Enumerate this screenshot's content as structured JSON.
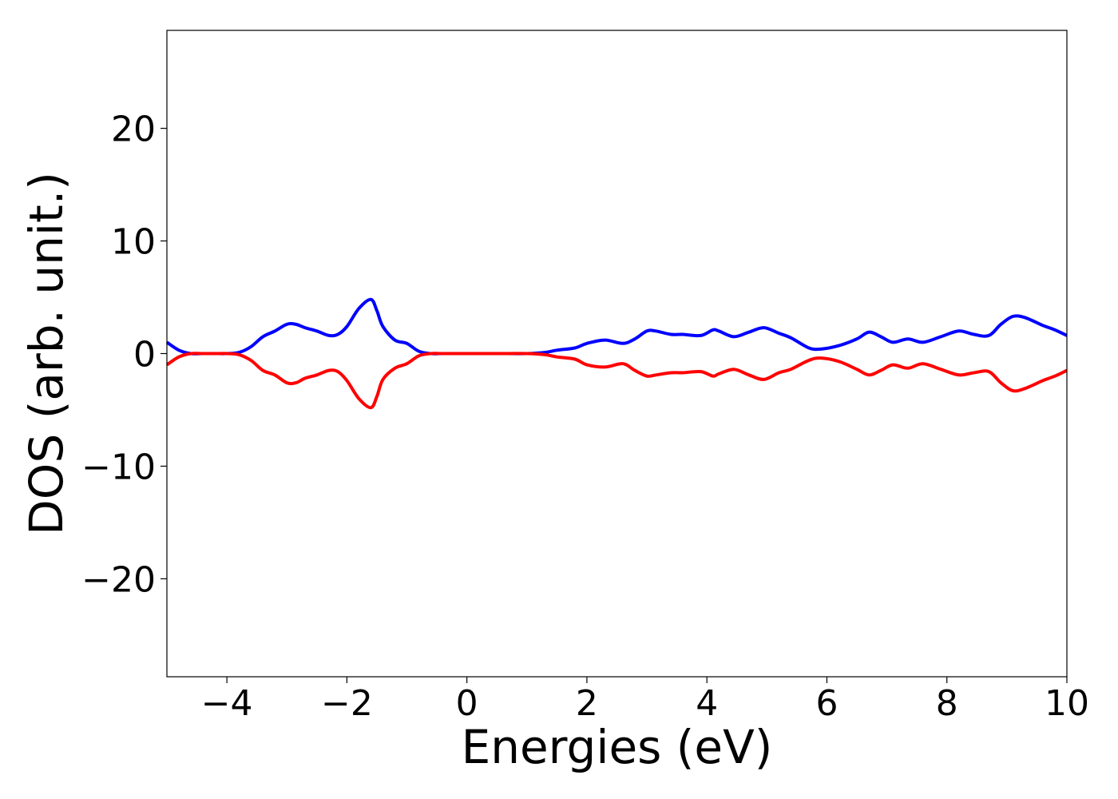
{
  "chart_data": {
    "type": "line",
    "title": "",
    "xlabel": "Energies (eV)",
    "ylabel": "DOS (arb. unit.)",
    "xlim": [
      -5,
      10
    ],
    "ylim": [
      -28.7,
      28.7
    ],
    "xticks": [
      -4,
      -2,
      0,
      2,
      4,
      6,
      8,
      10
    ],
    "xtick_labels": [
      "−4",
      "−2",
      "0",
      "2",
      "4",
      "6",
      "8",
      "10"
    ],
    "yticks": [
      -20,
      -10,
      0,
      10,
      20
    ],
    "ytick_labels": [
      "−20",
      "−10",
      "0",
      "10",
      "20"
    ],
    "grid": false,
    "legend": "none",
    "series": [
      {
        "color": "#0000ff",
        "x": [
          -5.0,
          -4.8,
          -4.6,
          -4.4,
          -4.2,
          -4.0,
          -3.8,
          -3.6,
          -3.4,
          -3.2,
          -3.0,
          -2.85,
          -2.7,
          -2.5,
          -2.3,
          -2.15,
          -2.0,
          -1.8,
          -1.6,
          -1.5,
          -1.4,
          -1.2,
          -1.0,
          -0.8,
          -0.6,
          -0.4,
          0.0,
          0.5,
          1.0,
          1.3,
          1.5,
          1.8,
          2.0,
          2.3,
          2.6,
          2.8,
          3.0,
          3.15,
          3.4,
          3.6,
          3.9,
          4.1,
          4.2,
          4.45,
          4.7,
          4.95,
          5.2,
          5.4,
          5.7,
          5.9,
          6.2,
          6.5,
          6.7,
          6.9,
          7.1,
          7.35,
          7.6,
          7.9,
          8.2,
          8.45,
          8.7,
          8.9,
          9.1,
          9.3,
          9.6,
          9.8,
          10.0
        ],
        "values": [
          1.0,
          0.3,
          0.0,
          0.0,
          0.0,
          0.0,
          0.1,
          0.6,
          1.5,
          2.0,
          2.6,
          2.6,
          2.3,
          2.0,
          1.6,
          1.7,
          2.4,
          4.0,
          4.8,
          3.8,
          2.4,
          1.2,
          0.9,
          0.2,
          0.0,
          0.0,
          0.0,
          0.0,
          0.0,
          0.1,
          0.3,
          0.5,
          0.9,
          1.2,
          0.9,
          1.3,
          2.0,
          2.0,
          1.7,
          1.7,
          1.6,
          2.1,
          2.0,
          1.5,
          1.9,
          2.3,
          1.8,
          1.4,
          0.5,
          0.4,
          0.7,
          1.3,
          1.9,
          1.5,
          1.0,
          1.3,
          1.0,
          1.5,
          2.0,
          1.7,
          1.6,
          2.6,
          3.3,
          3.2,
          2.5,
          2.1,
          1.6
        ]
      },
      {
        "color": "#ff0000",
        "x": [
          -5.0,
          -4.8,
          -4.6,
          -4.4,
          -4.2,
          -4.0,
          -3.8,
          -3.6,
          -3.4,
          -3.2,
          -3.0,
          -2.85,
          -2.7,
          -2.5,
          -2.3,
          -2.15,
          -2.0,
          -1.8,
          -1.6,
          -1.5,
          -1.4,
          -1.2,
          -1.0,
          -0.8,
          -0.6,
          -0.4,
          0.0,
          0.5,
          1.0,
          1.3,
          1.5,
          1.8,
          2.0,
          2.3,
          2.6,
          2.8,
          3.0,
          3.15,
          3.4,
          3.6,
          3.9,
          4.1,
          4.2,
          4.45,
          4.7,
          4.95,
          5.2,
          5.4,
          5.7,
          5.9,
          6.2,
          6.5,
          6.7,
          6.9,
          7.1,
          7.35,
          7.6,
          7.9,
          8.2,
          8.45,
          8.7,
          8.9,
          9.1,
          9.3,
          9.6,
          9.8,
          10.0
        ],
        "values": [
          -1.0,
          -0.3,
          0.0,
          0.0,
          0.0,
          0.0,
          -0.1,
          -0.6,
          -1.5,
          -1.9,
          -2.6,
          -2.6,
          -2.2,
          -1.9,
          -1.5,
          -1.6,
          -2.4,
          -4.0,
          -4.8,
          -3.8,
          -2.3,
          -1.3,
          -0.9,
          -0.2,
          0.0,
          0.0,
          0.0,
          0.0,
          0.0,
          -0.1,
          -0.3,
          -0.5,
          -1.0,
          -1.2,
          -0.9,
          -1.5,
          -2.0,
          -1.9,
          -1.7,
          -1.7,
          -1.6,
          -2.0,
          -1.8,
          -1.4,
          -1.9,
          -2.3,
          -1.7,
          -1.4,
          -0.6,
          -0.4,
          -0.7,
          -1.4,
          -1.9,
          -1.5,
          -1.0,
          -1.3,
          -0.9,
          -1.4,
          -1.9,
          -1.7,
          -1.6,
          -2.6,
          -3.3,
          -3.1,
          -2.4,
          -2.0,
          -1.5
        ]
      }
    ]
  }
}
